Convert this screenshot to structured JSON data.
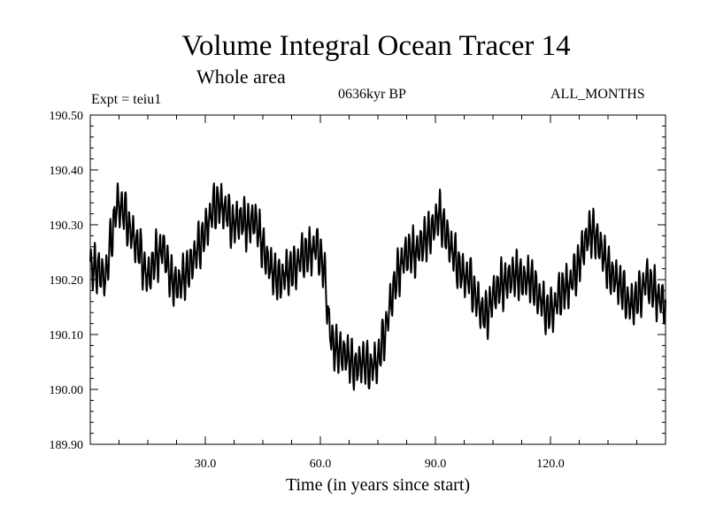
{
  "chart_data": {
    "type": "line",
    "title": "Volume Integral Ocean Tracer 14",
    "subtitle": "Whole area",
    "experiment": "Expt = teiu1",
    "period": "0636kyr BP",
    "months": "ALL_MONTHS",
    "xlabel": "Time (in years since start)",
    "ylabel": "",
    "xlim": [
      0,
      150
    ],
    "ylim": [
      189.9,
      190.5
    ],
    "x_ticks": [
      30,
      60,
      90,
      120
    ],
    "x_tick_labels": [
      "30.0",
      "60.0",
      "90.0",
      "120.0"
    ],
    "y_ticks": [
      189.9,
      190.0,
      190.1,
      190.2,
      190.3,
      190.4,
      190.5
    ],
    "y_tick_labels": [
      "189.90",
      "190.00",
      "190.10",
      "190.20",
      "190.30",
      "190.40",
      "190.50"
    ],
    "grid": false,
    "line_color": "#000000",
    "series": [
      {
        "name": "Volume Integral Ocean Tracer 14",
        "samples_per_year": 12,
        "seasonal_amplitude": 0.045,
        "annual_mean_anchors": {
          "x": [
            0,
            2,
            4,
            6,
            7,
            9,
            11,
            13,
            15,
            17,
            19,
            21,
            23,
            25,
            27,
            29,
            31,
            33,
            35,
            37,
            39,
            41,
            43,
            45,
            47,
            49,
            51,
            53,
            55,
            57,
            59,
            61,
            62,
            63,
            65,
            67,
            69,
            71,
            73,
            75,
            77,
            79,
            81,
            83,
            85,
            87,
            89,
            91,
            92,
            93,
            95,
            97,
            99,
            101,
            103,
            105,
            107,
            109,
            111,
            113,
            115,
            117,
            119,
            121,
            123,
            125,
            127,
            129,
            131,
            133,
            135,
            137,
            139,
            141,
            143,
            145,
            147,
            149,
            150
          ],
          "y": [
            190.22,
            190.22,
            190.2,
            190.3,
            190.34,
            190.32,
            190.28,
            190.25,
            190.2,
            190.24,
            190.26,
            190.2,
            190.19,
            190.21,
            190.24,
            190.27,
            190.31,
            190.34,
            190.33,
            190.3,
            190.31,
            190.3,
            190.31,
            190.26,
            190.22,
            190.2,
            190.21,
            190.22,
            190.24,
            190.25,
            190.26,
            190.22,
            190.14,
            190.08,
            190.07,
            190.06,
            190.04,
            190.05,
            190.04,
            190.05,
            190.11,
            190.18,
            190.23,
            190.25,
            190.25,
            190.27,
            190.29,
            190.32,
            190.3,
            190.28,
            190.24,
            190.21,
            190.2,
            190.16,
            190.13,
            190.17,
            190.19,
            190.2,
            190.21,
            190.2,
            190.2,
            190.17,
            190.14,
            190.15,
            190.18,
            190.19,
            190.22,
            190.27,
            190.29,
            190.26,
            190.22,
            190.2,
            190.18,
            190.15,
            190.17,
            190.2,
            190.18,
            190.16,
            190.15
          ]
        }
      }
    ]
  }
}
